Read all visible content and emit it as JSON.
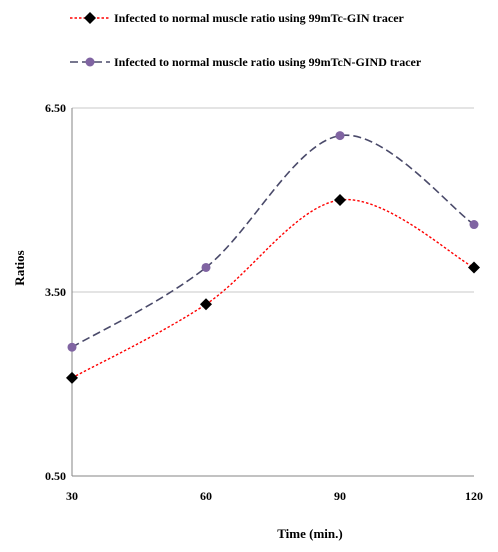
{
  "chart_data": {
    "type": "line",
    "x": [
      30,
      60,
      90,
      120
    ],
    "series": [
      {
        "name": "Infected to normal muscle ratio using 99mTc-GIN tracer",
        "values": [
          2.1,
          3.3,
          5.0,
          3.9
        ],
        "color": "#ff0000",
        "line_style": "dotted",
        "marker": "diamond",
        "marker_color": "#000000"
      },
      {
        "name": "Infected to normal muscle ratio using 99mTcN-GIND tracer",
        "values": [
          2.6,
          3.9,
          6.05,
          4.6
        ],
        "color": "#4a4a6a",
        "line_style": "dashed",
        "marker": "circle",
        "marker_color": "#8064a2"
      }
    ],
    "xlabel": "Time (min.)",
    "ylabel": "Ratios",
    "x_tick_labels": [
      "30",
      "60",
      "90",
      "120"
    ],
    "y_ticks": [
      0.5,
      3.5,
      6.5
    ],
    "y_tick_labels": [
      "0.50",
      "3.50",
      "6.50"
    ],
    "ylim": [
      0.5,
      6.5
    ],
    "grid": "horizontal",
    "legend_position": "top"
  }
}
